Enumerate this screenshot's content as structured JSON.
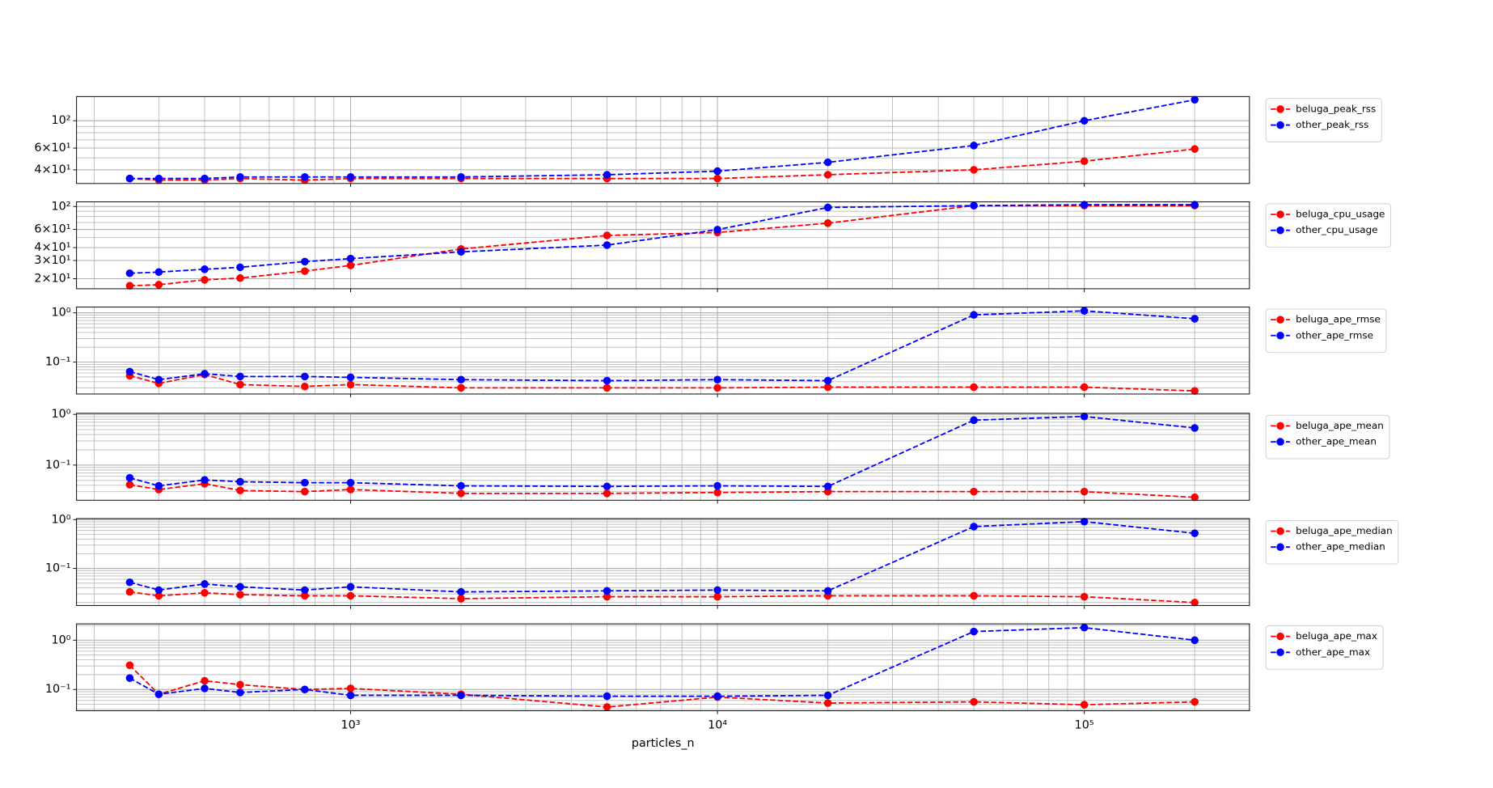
{
  "chart_data": [
    {
      "type": "line",
      "xscale": "log",
      "yscale": "log",
      "grid": "both",
      "legend": "outside right",
      "x": [
        250,
        300,
        400,
        500,
        750,
        1000,
        2000,
        5000,
        10000,
        20000,
        50000,
        100000,
        200000
      ],
      "xlim": [
        179,
        282000
      ],
      "xticks": [
        1000,
        10000,
        100000
      ],
      "ylim": [
        31,
        157
      ],
      "yticks": [
        {
          "value": 40,
          "label": "4×10¹"
        },
        {
          "value": 60,
          "label": "6×10¹"
        },
        {
          "value": 100,
          "label": "10²"
        }
      ],
      "series": [
        {
          "name": "beluga_peak_rss",
          "color": "#ff0000",
          "values": [
            34,
            33,
            33,
            34,
            33,
            34,
            34,
            34,
            34,
            36.5,
            40,
            47,
            59
          ]
        },
        {
          "name": "other_peak_rss",
          "color": "#0000ff",
          "values": [
            34,
            34,
            34,
            35,
            35,
            35,
            35,
            36.5,
            39,
            46,
            63,
            100,
            148
          ]
        }
      ]
    },
    {
      "type": "line",
      "xscale": "log",
      "yscale": "log",
      "grid": "both",
      "legend": "outside right",
      "x": [
        250,
        300,
        400,
        500,
        750,
        1000,
        2000,
        5000,
        10000,
        20000,
        50000,
        100000,
        200000
      ],
      "xlim": [
        179,
        282000
      ],
      "xticks": [
        1000,
        10000,
        100000
      ],
      "ylim": [
        16,
        111
      ],
      "yticks": [
        {
          "value": 20,
          "label": "2×10¹"
        },
        {
          "value": 30,
          "label": "3×10¹"
        },
        {
          "value": 40,
          "label": "4×10¹"
        },
        {
          "value": 60,
          "label": "6×10¹"
        },
        {
          "value": 100,
          "label": "10²"
        }
      ],
      "series": [
        {
          "name": "beluga_cpu_usage",
          "color": "#ff0000",
          "values": [
            17.1,
            17.5,
            19.5,
            20.3,
            23.7,
            26.9,
            38.8,
            52.5,
            56,
            69,
            102,
            102,
            102
          ]
        },
        {
          "name": "other_cpu_usage",
          "color": "#0000ff",
          "values": [
            22.6,
            23.2,
            24.7,
            25.8,
            29.3,
            31.3,
            36.4,
            42.3,
            59.7,
            98,
            102,
            104,
            104
          ]
        }
      ]
    },
    {
      "type": "line",
      "xscale": "log",
      "yscale": "log",
      "grid": "both",
      "legend": "outside right",
      "x": [
        250,
        300,
        400,
        500,
        750,
        1000,
        2000,
        5000,
        10000,
        20000,
        50000,
        100000,
        200000
      ],
      "xlim": [
        179,
        282000
      ],
      "xticks": [
        1000,
        10000,
        100000
      ],
      "ylim": [
        0.0225,
        1.31
      ],
      "yticks": [
        {
          "value": 0.1,
          "label": "10⁻¹"
        },
        {
          "value": 1,
          "label": "10⁰"
        }
      ],
      "series": [
        {
          "name": "beluga_ape_rmse",
          "color": "#ff0000",
          "values": [
            0.053,
            0.037,
            0.056,
            0.035,
            0.032,
            0.035,
            0.03,
            0.03,
            0.03,
            0.031,
            0.031,
            0.031,
            0.026
          ]
        },
        {
          "name": "other_ape_rmse",
          "color": "#0000ff",
          "values": [
            0.064,
            0.044,
            0.058,
            0.051,
            0.051,
            0.049,
            0.044,
            0.042,
            0.044,
            0.042,
            0.91,
            1.1,
            0.76
          ]
        }
      ]
    },
    {
      "type": "line",
      "xscale": "log",
      "yscale": "log",
      "grid": "both",
      "legend": "outside right",
      "x": [
        250,
        300,
        400,
        500,
        750,
        1000,
        2000,
        5000,
        10000,
        20000,
        50000,
        100000,
        200000
      ],
      "xlim": [
        179,
        282000
      ],
      "xticks": [
        1000,
        10000,
        100000
      ],
      "ylim": [
        0.0203,
        1.05
      ],
      "yticks": [
        {
          "value": 0.1,
          "label": "10⁻¹"
        },
        {
          "value": 1,
          "label": "10⁰"
        }
      ],
      "series": [
        {
          "name": "beluga_ape_mean",
          "color": "#ff0000",
          "values": [
            0.041,
            0.033,
            0.043,
            0.0316,
            0.03,
            0.033,
            0.0277,
            0.0277,
            0.0288,
            0.03,
            0.03,
            0.03,
            0.0232
          ]
        },
        {
          "name": "other_ape_mean",
          "color": "#0000ff",
          "values": [
            0.056,
            0.039,
            0.051,
            0.047,
            0.045,
            0.045,
            0.039,
            0.038,
            0.039,
            0.038,
            0.77,
            0.91,
            0.54
          ]
        }
      ]
    },
    {
      "type": "line",
      "xscale": "log",
      "yscale": "log",
      "grid": "both",
      "legend": "outside right",
      "x": [
        250,
        300,
        400,
        500,
        750,
        1000,
        2000,
        5000,
        10000,
        20000,
        50000,
        100000,
        200000
      ],
      "xlim": [
        179,
        282000
      ],
      "xticks": [
        1000,
        10000,
        100000
      ],
      "ylim": [
        0.0174,
        1.05
      ],
      "yticks": [
        {
          "value": 0.1,
          "label": "10⁻¹"
        },
        {
          "value": 1,
          "label": "10⁰"
        }
      ],
      "series": [
        {
          "name": "beluga_ape_median",
          "color": "#ff0000",
          "values": [
            0.033,
            0.0275,
            0.0316,
            0.029,
            0.0275,
            0.0275,
            0.024,
            0.0263,
            0.0263,
            0.0275,
            0.0275,
            0.0263,
            0.02
          ]
        },
        {
          "name": "other_ape_median",
          "color": "#0000ff",
          "values": [
            0.052,
            0.036,
            0.048,
            0.042,
            0.036,
            0.042,
            0.033,
            0.0347,
            0.036,
            0.0347,
            0.72,
            0.91,
            0.525
          ]
        }
      ]
    },
    {
      "type": "line",
      "xscale": "log",
      "yscale": "log",
      "grid": "both",
      "legend": "outside right",
      "x": [
        250,
        300,
        400,
        500,
        750,
        1000,
        2000,
        5000,
        10000,
        20000,
        50000,
        100000,
        200000
      ],
      "xlim": [
        179,
        282000
      ],
      "xticks": [
        {
          "value": 1000,
          "label": "10³"
        },
        {
          "value": 10000,
          "label": "10⁴"
        },
        {
          "value": 100000,
          "label": "10⁵"
        }
      ],
      "xlabel": "particles_n",
      "ylim": [
        0.037,
        2.15
      ],
      "yticks": [
        {
          "value": 0.1,
          "label": "10⁻¹"
        },
        {
          "value": 1,
          "label": "10⁰"
        }
      ],
      "series": [
        {
          "name": "beluga_ape_max",
          "color": "#ff0000",
          "values": [
            0.31,
            0.08,
            0.15,
            0.125,
            0.1,
            0.105,
            0.08,
            0.044,
            0.07,
            0.053,
            0.056,
            0.049,
            0.056
          ]
        },
        {
          "name": "other_ape_max",
          "color": "#0000ff",
          "values": [
            0.17,
            0.08,
            0.105,
            0.087,
            0.1,
            0.076,
            0.076,
            0.073,
            0.073,
            0.076,
            1.5,
            1.8,
            1.0
          ]
        }
      ]
    }
  ]
}
